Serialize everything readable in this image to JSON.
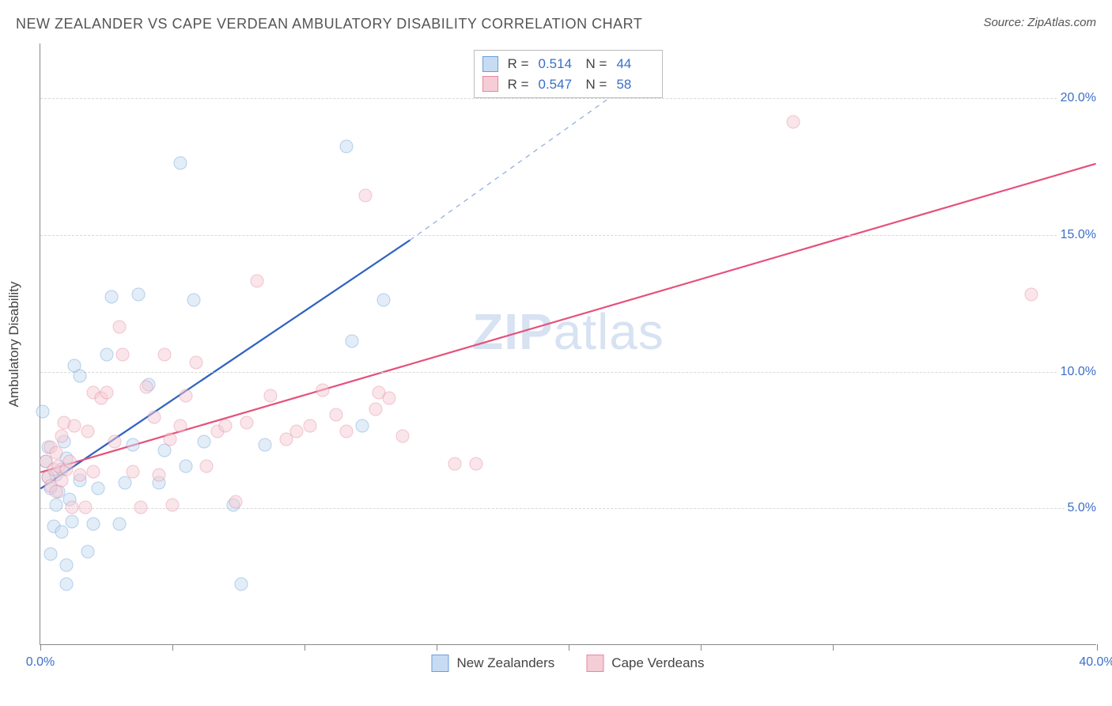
{
  "header": {
    "title": "NEW ZEALANDER VS CAPE VERDEAN AMBULATORY DISABILITY CORRELATION CHART",
    "source": "Source: ZipAtlas.com"
  },
  "watermark": {
    "bold": "ZIP",
    "rest": "atlas"
  },
  "chart": {
    "type": "scatter",
    "ylabel": "Ambulatory Disability",
    "background_color": "#ffffff",
    "grid_color": "#d8d8d8",
    "axis_color": "#888888",
    "tick_label_color": "#3b6fc9",
    "text_color": "#444444",
    "xlim": [
      0,
      40
    ],
    "ylim": [
      0,
      22
    ],
    "xticks": [
      0,
      5,
      10,
      15,
      20,
      25,
      30,
      40
    ],
    "xtick_labels": {
      "0": "0.0%",
      "40": "40.0%"
    },
    "yticks": [
      5,
      10,
      15,
      20
    ],
    "ytick_labels": {
      "5": "5.0%",
      "10": "10.0%",
      "15": "15.0%",
      "20": "20.0%"
    },
    "marker_radius": 8.5,
    "marker_opacity": 0.5,
    "series": [
      {
        "id": "nz",
        "label": "New Zealanders",
        "fill": "#c7dcf2",
        "stroke": "#6a9fd8",
        "line_stroke": "#2d62c1",
        "line_width": 2.2,
        "stats": {
          "R": "0.514",
          "N": "44"
        },
        "trend": {
          "x1": 0,
          "y1": 5.7,
          "x2": 14,
          "y2": 14.8
        },
        "trend_dashed": {
          "x1": 14,
          "y1": 14.8,
          "x2": 23,
          "y2": 21
        },
        "points": [
          [
            0.1,
            8.5
          ],
          [
            0.2,
            6.7
          ],
          [
            0.3,
            6.1
          ],
          [
            0.3,
            7.2
          ],
          [
            0.4,
            3.3
          ],
          [
            0.4,
            5.7
          ],
          [
            0.5,
            4.3
          ],
          [
            0.6,
            6.2
          ],
          [
            0.6,
            5.1
          ],
          [
            0.7,
            5.6
          ],
          [
            0.8,
            4.1
          ],
          [
            0.8,
            6.4
          ],
          [
            0.9,
            7.4
          ],
          [
            1.0,
            6.8
          ],
          [
            1.0,
            2.9
          ],
          [
            1.1,
            5.3
          ],
          [
            1.2,
            4.5
          ],
          [
            1.3,
            10.2
          ],
          [
            1.5,
            6.0
          ],
          [
            1.5,
            9.8
          ],
          [
            1.8,
            3.4
          ],
          [
            2.0,
            4.4
          ],
          [
            2.2,
            5.7
          ],
          [
            2.5,
            10.6
          ],
          [
            2.7,
            12.7
          ],
          [
            3.0,
            4.4
          ],
          [
            3.2,
            5.9
          ],
          [
            3.5,
            7.3
          ],
          [
            3.7,
            12.8
          ],
          [
            4.1,
            9.5
          ],
          [
            4.5,
            5.9
          ],
          [
            4.7,
            7.1
          ],
          [
            5.3,
            17.6
          ],
          [
            5.5,
            6.5
          ],
          [
            5.8,
            12.6
          ],
          [
            6.2,
            7.4
          ],
          [
            7.3,
            5.1
          ],
          [
            7.6,
            2.2
          ],
          [
            8.5,
            7.3
          ],
          [
            11.6,
            18.2
          ],
          [
            11.8,
            11.1
          ],
          [
            12.2,
            8.0
          ],
          [
            13.0,
            12.6
          ],
          [
            1.0,
            2.2
          ]
        ]
      },
      {
        "id": "cv",
        "label": "Cape Verdeans",
        "fill": "#f5cdd6",
        "stroke": "#e6889f",
        "line_stroke": "#e5517c",
        "line_width": 2.2,
        "stats": {
          "R": "0.547",
          "N": "58"
        },
        "trend": {
          "x1": 0,
          "y1": 6.3,
          "x2": 40,
          "y2": 17.6
        },
        "points": [
          [
            0.2,
            6.7
          ],
          [
            0.3,
            6.1
          ],
          [
            0.4,
            5.8
          ],
          [
            0.4,
            7.2
          ],
          [
            0.5,
            6.4
          ],
          [
            0.6,
            5.6
          ],
          [
            0.6,
            7.0
          ],
          [
            0.7,
            6.5
          ],
          [
            0.8,
            7.6
          ],
          [
            0.8,
            6.0
          ],
          [
            0.9,
            8.1
          ],
          [
            1.0,
            6.4
          ],
          [
            1.1,
            6.7
          ],
          [
            1.2,
            5.0
          ],
          [
            1.3,
            8.0
          ],
          [
            1.5,
            6.2
          ],
          [
            1.7,
            5.0
          ],
          [
            1.8,
            7.8
          ],
          [
            2.0,
            9.2
          ],
          [
            2.0,
            6.3
          ],
          [
            2.3,
            9.0
          ],
          [
            2.5,
            9.2
          ],
          [
            2.8,
            7.4
          ],
          [
            3.0,
            11.6
          ],
          [
            3.1,
            10.6
          ],
          [
            3.5,
            6.3
          ],
          [
            3.8,
            5.0
          ],
          [
            4.0,
            9.4
          ],
          [
            4.3,
            8.3
          ],
          [
            4.5,
            6.2
          ],
          [
            4.7,
            10.6
          ],
          [
            5.0,
            5.1
          ],
          [
            5.3,
            8.0
          ],
          [
            5.5,
            9.1
          ],
          [
            5.9,
            10.3
          ],
          [
            6.3,
            6.5
          ],
          [
            6.7,
            7.8
          ],
          [
            7.0,
            8.0
          ],
          [
            7.4,
            5.2
          ],
          [
            7.8,
            8.1
          ],
          [
            8.2,
            13.3
          ],
          [
            8.7,
            9.1
          ],
          [
            9.3,
            7.5
          ],
          [
            9.7,
            7.8
          ],
          [
            10.2,
            8.0
          ],
          [
            10.7,
            9.3
          ],
          [
            11.2,
            8.4
          ],
          [
            11.6,
            7.8
          ],
          [
            12.3,
            16.4
          ],
          [
            12.7,
            8.6
          ],
          [
            12.8,
            9.2
          ],
          [
            13.2,
            9.0
          ],
          [
            13.7,
            7.6
          ],
          [
            15.7,
            6.6
          ],
          [
            16.5,
            6.6
          ],
          [
            28.5,
            19.1
          ],
          [
            37.5,
            12.8
          ],
          [
            4.9,
            7.5
          ]
        ]
      }
    ]
  },
  "stats_box": {
    "R_label": "R  =",
    "N_label": "N  ="
  },
  "legend_swatch_size": 22
}
